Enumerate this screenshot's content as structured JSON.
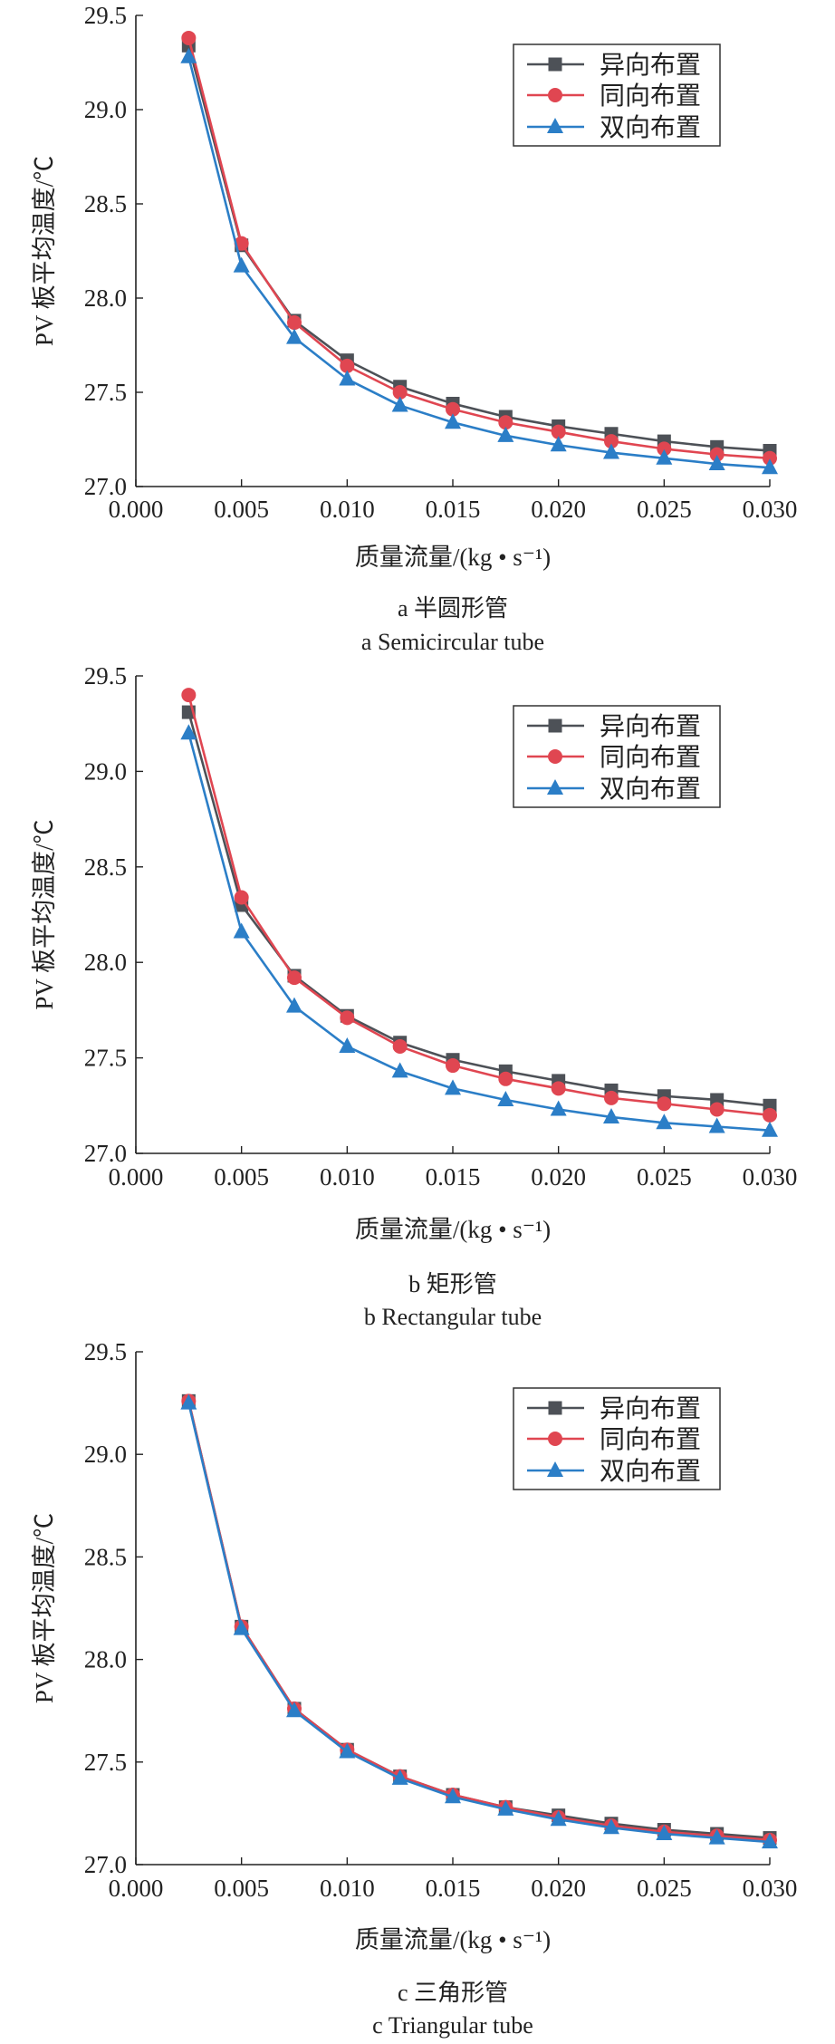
{
  "chart_data": [
    {
      "type": "line",
      "caption_zh": "a  半圆形管",
      "caption_en": "a  Semicircular tube",
      "xlabel": "质量流量/(kg • s⁻¹)",
      "ylabel": "PV 板平均温度/℃",
      "xlim": [
        0,
        0.03
      ],
      "ylim": [
        27.0,
        29.5
      ],
      "xticks": [
        "0.000",
        "0.005",
        "0.010",
        "0.015",
        "0.020",
        "0.025",
        "0.030"
      ],
      "yticks": [
        "27.0",
        "27.5",
        "28.0",
        "28.5",
        "29.0",
        "29.5"
      ],
      "grid": false,
      "legend": "top-right",
      "x": [
        0.0025,
        0.005,
        0.0075,
        0.01,
        0.0125,
        0.015,
        0.0175,
        0.02,
        0.0225,
        0.025,
        0.0275,
        0.03
      ],
      "series": [
        {
          "name": "异向布置",
          "color": "#4d5157",
          "marker": "square",
          "values": [
            29.34,
            28.28,
            27.88,
            27.67,
            27.53,
            27.44,
            27.37,
            27.32,
            27.28,
            27.24,
            27.21,
            27.19
          ]
        },
        {
          "name": "同向布置",
          "color": "#e04651",
          "marker": "circle",
          "values": [
            29.38,
            28.29,
            27.87,
            27.64,
            27.5,
            27.41,
            27.34,
            27.29,
            27.24,
            27.2,
            27.17,
            27.15
          ]
        },
        {
          "name": "双向布置",
          "color": "#2b7ec7",
          "marker": "triangle",
          "values": [
            29.28,
            28.17,
            27.79,
            27.57,
            27.43,
            27.34,
            27.27,
            27.22,
            27.18,
            27.15,
            27.12,
            27.1
          ]
        }
      ]
    },
    {
      "type": "line",
      "caption_zh": "b  矩形管",
      "caption_en": "b  Rectangular tube",
      "xlabel": "质量流量/(kg • s⁻¹)",
      "ylabel": "PV 板平均温度/℃",
      "xlim": [
        0,
        0.03
      ],
      "ylim": [
        27.0,
        29.5
      ],
      "xticks": [
        "0.000",
        "0.005",
        "0.010",
        "0.015",
        "0.020",
        "0.025",
        "0.030"
      ],
      "yticks": [
        "27.0",
        "27.5",
        "28.0",
        "28.5",
        "29.0",
        "29.5"
      ],
      "grid": false,
      "legend": "top-right",
      "x": [
        0.0025,
        0.005,
        0.0075,
        0.01,
        0.0125,
        0.015,
        0.0175,
        0.02,
        0.0225,
        0.025,
        0.0275,
        0.03
      ],
      "series": [
        {
          "name": "异向布置",
          "color": "#4d5157",
          "marker": "square",
          "values": [
            29.31,
            28.3,
            27.93,
            27.72,
            27.58,
            27.49,
            27.43,
            27.38,
            27.33,
            27.3,
            27.28,
            27.25
          ]
        },
        {
          "name": "同向布置",
          "color": "#e04651",
          "marker": "circle",
          "values": [
            29.4,
            28.34,
            27.92,
            27.71,
            27.56,
            27.46,
            27.39,
            27.34,
            27.29,
            27.26,
            27.23,
            27.2
          ]
        },
        {
          "name": "双向布置",
          "color": "#2b7ec7",
          "marker": "triangle",
          "values": [
            29.2,
            28.16,
            27.77,
            27.56,
            27.43,
            27.34,
            27.28,
            27.23,
            27.19,
            27.16,
            27.14,
            27.12
          ]
        }
      ]
    },
    {
      "type": "line",
      "caption_zh": "c  三角形管",
      "caption_en": "c  Triangular tube",
      "xlabel": "质量流量/(kg • s⁻¹)",
      "ylabel": "PV 板平均温度/℃",
      "xlim": [
        0,
        0.03
      ],
      "ylim": [
        27.0,
        29.5
      ],
      "xticks": [
        "0.000",
        "0.005",
        "0.010",
        "0.015",
        "0.020",
        "0.025",
        "0.030"
      ],
      "yticks": [
        "27.0",
        "27.5",
        "28.0",
        "28.5",
        "29.0",
        "29.5"
      ],
      "grid": false,
      "legend": "top-right",
      "x": [
        0.0025,
        0.005,
        0.0075,
        0.01,
        0.0125,
        0.015,
        0.0175,
        0.02,
        0.0225,
        0.025,
        0.0275,
        0.03
      ],
      "series": [
        {
          "name": "异向布置",
          "color": "#4d5157",
          "marker": "square",
          "values": [
            29.26,
            28.16,
            27.76,
            27.56,
            27.43,
            27.34,
            27.28,
            27.24,
            27.2,
            27.17,
            27.15,
            27.13
          ]
        },
        {
          "name": "同向布置",
          "color": "#e04651",
          "marker": "circle",
          "values": [
            29.26,
            28.16,
            27.76,
            27.56,
            27.43,
            27.34,
            27.28,
            27.23,
            27.19,
            27.16,
            27.14,
            27.12
          ]
        },
        {
          "name": "双向布置",
          "color": "#2b7ec7",
          "marker": "triangle",
          "values": [
            29.25,
            28.15,
            27.75,
            27.55,
            27.42,
            27.33,
            27.27,
            27.22,
            27.18,
            27.15,
            27.13,
            27.11
          ]
        }
      ]
    }
  ]
}
